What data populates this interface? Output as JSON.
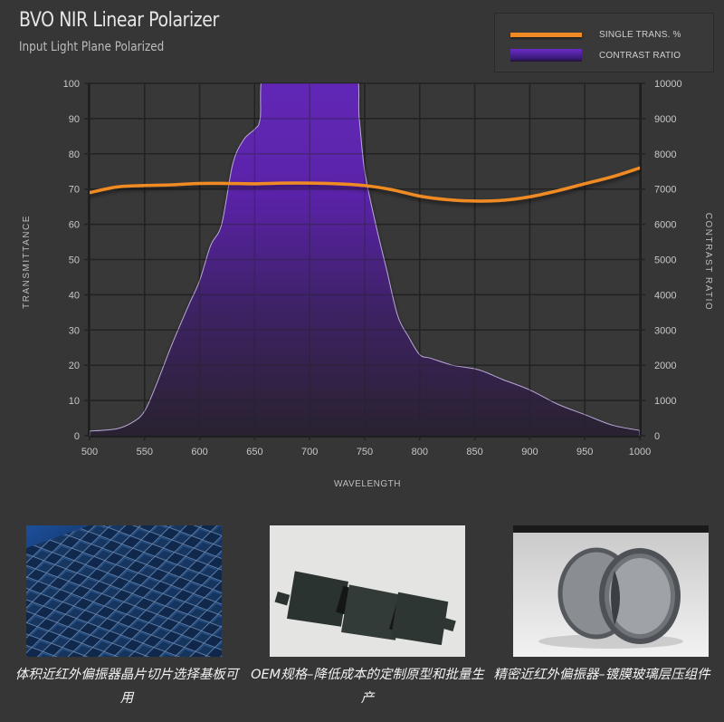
{
  "header": {
    "title": "BVO NIR Linear Polarizer",
    "subtitle": "Input Light Plane Polarized"
  },
  "legend": {
    "items": [
      {
        "label": "SINGLE TRANS. %",
        "color": "#f08a24",
        "style": "line"
      },
      {
        "label": "CONTRAST RATIO",
        "color": "#6a2cc6",
        "style": "area"
      }
    ]
  },
  "axes": {
    "x_title": "WAVELENGTH",
    "y_left_title": "TRANSMITTANCE",
    "y_right_title": "CONTRAST RATIO",
    "x_ticks": [
      "500",
      "550",
      "600",
      "650",
      "700",
      "750",
      "800",
      "850",
      "900",
      "950",
      "1000"
    ],
    "y_left_ticks": [
      "0",
      "10",
      "20",
      "30",
      "40",
      "50",
      "60",
      "70",
      "80",
      "90",
      "100"
    ],
    "y_right_ticks": [
      "0",
      "1000",
      "2000",
      "3000",
      "4000",
      "5000",
      "6000",
      "7000",
      "8000",
      "9000",
      "10000"
    ]
  },
  "chart_data": {
    "type": "line",
    "title": "BVO NIR Linear Polarizer",
    "subtitle": "Input Light Plane Polarized",
    "xlabel": "WAVELENGTH",
    "ylabel": "TRANSMITTANCE",
    "y2label": "CONTRAST RATIO",
    "xlim": [
      500,
      1000
    ],
    "ylim": [
      0,
      100
    ],
    "y2lim": [
      0,
      10000
    ],
    "grid": true,
    "legend_position": "top-right",
    "series": [
      {
        "name": "SINGLE TRANS. %",
        "type": "line",
        "axis": "left",
        "color": "#f08a24",
        "x": [
          500,
          525,
          550,
          575,
          600,
          625,
          650,
          675,
          700,
          725,
          750,
          775,
          800,
          825,
          850,
          875,
          900,
          925,
          950,
          975,
          1000
        ],
        "values": [
          69,
          70.6,
          71,
          71.2,
          71.6,
          71.6,
          71.5,
          71.7,
          71.7,
          71.5,
          71,
          69.8,
          68,
          67,
          66.6,
          66.8,
          67.8,
          69.5,
          71.5,
          73.5,
          76
        ]
      },
      {
        "name": "CONTRAST RATIO",
        "type": "area",
        "axis": "right",
        "color": "#6a2cc6",
        "x": [
          500,
          525,
          540,
          550,
          560,
          575,
          590,
          600,
          610,
          620,
          630,
          640,
          650,
          655,
          660,
          700,
          740,
          745,
          750,
          760,
          770,
          780,
          790,
          800,
          810,
          830,
          850,
          860,
          875,
          900,
          925,
          950,
          975,
          1000
        ],
        "values": [
          130,
          200,
          400,
          700,
          1400,
          2600,
          3700,
          4400,
          5400,
          6000,
          7700,
          8400,
          8700,
          9000,
          10000,
          10000,
          10000,
          9000,
          7500,
          6000,
          4700,
          3400,
          2800,
          2300,
          2200,
          2000,
          1900,
          1800,
          1600,
          1300,
          900,
          600,
          300,
          150
        ],
        "note": "Clipped at top of axis (10000) between ~660 and ~740 nm"
      }
    ]
  },
  "gallery": {
    "items": [
      {
        "caption": "体积近红外偏振器晶片切片选择基板可用",
        "image": "blue-grid-wafer-photo"
      },
      {
        "caption": "OEM规格–降低成本的定制原型和批量生产",
        "image": "dark-film-pieces-photo"
      },
      {
        "caption": "精密近红外偏振器–镀膜玻璃层压组件",
        "image": "round-polarizer-lenses-photo"
      }
    ]
  }
}
